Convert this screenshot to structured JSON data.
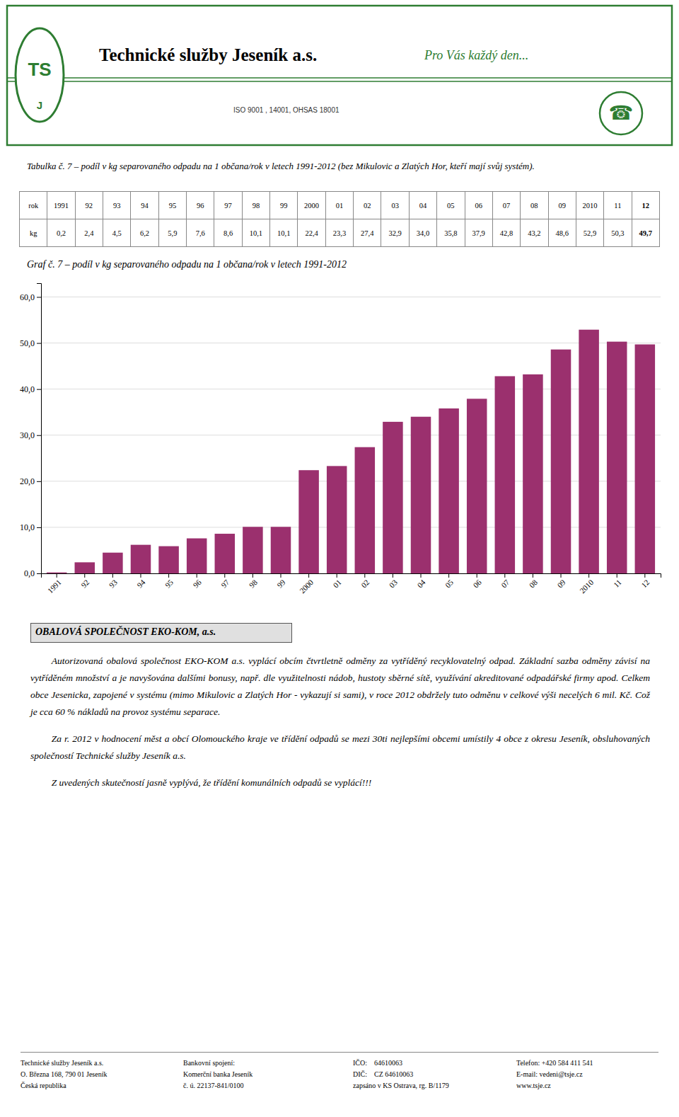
{
  "header": {
    "company": "Technické služby Jeseník a.s.",
    "slogan": "Pro Vás každý den...",
    "iso": "ISO 9001 , 14001, OHSAS 18001",
    "logo": [
      "TS",
      "J"
    ],
    "icon": "☎"
  },
  "table": {
    "title": "Tabulka č. 7 – podíl v kg separovaného odpadu na 1 občana/rok v letech 1991-2012 (bez Mikulovic a Zlatých Hor, kteří mají svůj systém).",
    "rows": [
      [
        "rok",
        "1991",
        "92",
        "93",
        "94",
        "95",
        "96",
        "97",
        "98",
        "99",
        "2000",
        "01",
        "02",
        "03",
        "04",
        "05",
        "06",
        "07",
        "08",
        "09",
        "2010",
        "11",
        "12"
      ],
      [
        "kg",
        "0,2",
        "2,4",
        "4,5",
        "6,2",
        "5,9",
        "7,6",
        "8,6",
        "10,1",
        "10,1",
        "22,4",
        "23,3",
        "27,4",
        "32,9",
        "34,0",
        "35,8",
        "37,9",
        "42,8",
        "43,2",
        "48,6",
        "52,9",
        "50,3",
        "49,7"
      ]
    ]
  },
  "chart_data": {
    "type": "bar",
    "title": "Graf č. 7 – podíl v kg separovaného odpadu na 1 občana/rok v letech 1991-2012",
    "categories": [
      "1991",
      "92",
      "93",
      "94",
      "95",
      "96",
      "97",
      "98",
      "99",
      "2000",
      "01",
      "02",
      "03",
      "04",
      "05",
      "06",
      "07",
      "08",
      "09",
      "2010",
      "11",
      "12"
    ],
    "values": [
      0.2,
      2.4,
      4.5,
      6.2,
      5.9,
      7.6,
      8.6,
      10.1,
      10.1,
      22.4,
      23.3,
      27.4,
      32.9,
      34.0,
      35.8,
      37.9,
      42.8,
      43.2,
      48.6,
      52.9,
      50.3,
      49.7
    ],
    "color": "#9B306E",
    "ylim": [
      0,
      63
    ],
    "yticks": [
      {
        "value": 0,
        "label": "0,0"
      },
      {
        "value": 10,
        "label": "10,0"
      },
      {
        "value": 20,
        "label": "20,0"
      },
      {
        "value": 30,
        "label": "30,0"
      },
      {
        "value": 40,
        "label": "40,0"
      },
      {
        "value": 50,
        "label": "50,0"
      },
      {
        "value": 60,
        "label": "60,0"
      }
    ],
    "grid": true
  },
  "text": {
    "heading": "OBALOVÁ SPOLEČNOST EKO-KOM, a.s.",
    "paragraphs": [
      "Autorizovaná obalová společnost EKO-KOM a.s. vyplácí obcím čtvrtletně odměny za vytříděný recyklovatelný odpad. Základní sazba odměny závisí na vytříděném množství a je navyšována dalšími bonusy, např. dle využitelnosti nádob, hustoty sběrné sítě, využívání akreditované odpadářské firmy apod. Celkem obce Jesenicka, zapojené v systému (mimo Mikulovic a Zlatých Hor - vykazují si sami), v roce 2012 obdržely tuto odměnu v celkové výši necelých 6 mil. Kč. Což je cca 60 % nákladů na provoz systému separace.",
      "Za r. 2012 v hodnocení měst a obcí Olomouckého kraje ve třídění odpadů se mezi 30ti nejlepšími obcemi umístily 4 obce z okresu Jeseník, obsluhovaných společností Technické služby Jeseník a.s.",
      "Z uvedených skutečností jasně vyplývá, že třídění komunálních odpadů se vyplácí!!!"
    ]
  },
  "footer": [
    [
      "Technické služby Jeseník a.s.",
      "O. Března 168, 790 01 Jeseník",
      "Česká republika"
    ],
    [
      "Bankovní spojení:",
      "Komerční banka Jeseník",
      "č. ú. 22137-841/0100"
    ],
    [
      "IČO:\t64610063",
      "DIČ:\tCZ 64610063",
      "zapsáno v KS Ostrava, rg. B/1179"
    ],
    [
      "Telefon: +420 584 411 541",
      "E-mail: vedeni@tsje.cz",
      "www.tsje.cz"
    ]
  ]
}
